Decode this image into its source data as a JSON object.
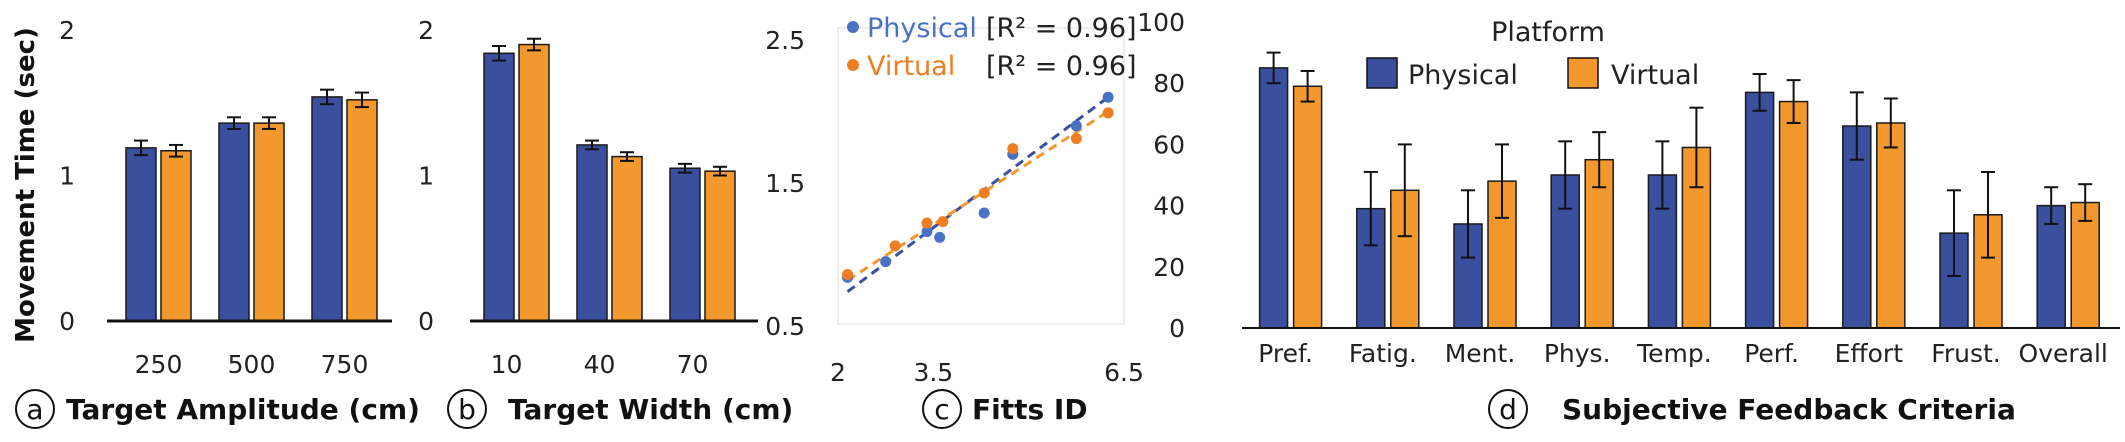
{
  "colors": {
    "physical": "#3a4f9e",
    "virtual": "#f3982c",
    "physical_point": "#4a72c4",
    "virtual_point": "#ef7d22"
  },
  "chart_data": [
    {
      "id": "a",
      "type": "bar",
      "caption_letter": "a",
      "caption": "Target Amplitude (cm)",
      "ylabel": "Movement Time (sec)",
      "categories": [
        "250",
        "500",
        "750"
      ],
      "ylim": [
        0,
        2
      ],
      "yticks": [
        "0",
        "1",
        "2"
      ],
      "series": [
        {
          "values": [
            1.19,
            1.36,
            1.54
          ],
          "errors": [
            0.05,
            0.04,
            0.05
          ]
        },
        {
          "values": [
            1.17,
            1.36,
            1.52
          ],
          "errors": [
            0.04,
            0.04,
            0.05
          ]
        }
      ]
    },
    {
      "id": "b",
      "type": "bar",
      "caption_letter": "b",
      "caption": "Target Width (cm)",
      "categories": [
        "10",
        "40",
        "70"
      ],
      "ylim": [
        0,
        2
      ],
      "yticks": [
        "0",
        "1",
        "2"
      ],
      "series": [
        {
          "values": [
            1.84,
            1.21,
            1.05
          ],
          "errors": [
            0.05,
            0.03,
            0.03
          ]
        },
        {
          "values": [
            1.9,
            1.13,
            1.03
          ],
          "errors": [
            0.04,
            0.03,
            0.03
          ]
        }
      ]
    },
    {
      "id": "c",
      "type": "scatter",
      "caption_letter": "c",
      "caption": "Fitts ID",
      "xlim": [
        2,
        6.5
      ],
      "ylim": [
        0.5,
        2.5
      ],
      "xticks": [
        "2",
        "3.5",
        "6.5"
      ],
      "xtick_values": [
        2,
        3.5,
        6.5
      ],
      "yticks": [
        "0.5",
        "1.5",
        "2.5"
      ],
      "ytick_values": [
        0.5,
        1.5,
        2.5
      ],
      "legend": [
        {
          "name": "Physical",
          "r2": "[R² = 0.96]"
        },
        {
          "name": "Virtual",
          "r2": "[R² = 0.96]"
        }
      ],
      "series": [
        {
          "name": "Physical",
          "points": [
            [
              2.15,
              0.84
            ],
            [
              2.75,
              0.95
            ],
            [
              3.4,
              1.16
            ],
            [
              3.6,
              1.12
            ],
            [
              4.3,
              1.29
            ],
            [
              4.75,
              1.7
            ],
            [
              5.75,
              1.9
            ],
            [
              6.25,
              2.1
            ]
          ],
          "fit": [
            [
              2.15,
              0.74
            ],
            [
              6.25,
              2.1
            ]
          ]
        },
        {
          "name": "Virtual",
          "points": [
            [
              2.15,
              0.86
            ],
            [
              2.9,
              1.06
            ],
            [
              3.4,
              1.22
            ],
            [
              3.65,
              1.23
            ],
            [
              4.3,
              1.43
            ],
            [
              4.75,
              1.74
            ],
            [
              5.75,
              1.81
            ],
            [
              6.25,
              1.99
            ]
          ],
          "fit": [
            [
              2.15,
              0.82
            ],
            [
              6.25,
              2.0
            ]
          ]
        }
      ]
    },
    {
      "id": "d",
      "type": "bar",
      "caption_letter": "d",
      "caption": "Subjective Feedback Criteria",
      "categories": [
        "Pref.",
        "Fatig.",
        "Ment.",
        "Phys.",
        "Temp.",
        "Perf.",
        "Effort",
        "Frust.",
        "Overall"
      ],
      "ylim": [
        0,
        100
      ],
      "yticks": [
        "0",
        "20",
        "40",
        "60",
        "80",
        "100"
      ],
      "legend_title": "Platform",
      "series": [
        {
          "name": "Physical",
          "values": [
            85,
            39,
            34,
            50,
            50,
            77,
            66,
            31,
            40
          ],
          "errors": [
            5,
            12,
            11,
            11,
            11,
            6,
            11,
            14,
            6
          ]
        },
        {
          "name": "Virtual",
          "values": [
            79,
            45,
            48,
            55,
            59,
            74,
            67,
            37,
            41
          ],
          "errors": [
            5,
            15,
            12,
            9,
            13,
            7,
            8,
            14,
            6
          ]
        }
      ]
    }
  ]
}
